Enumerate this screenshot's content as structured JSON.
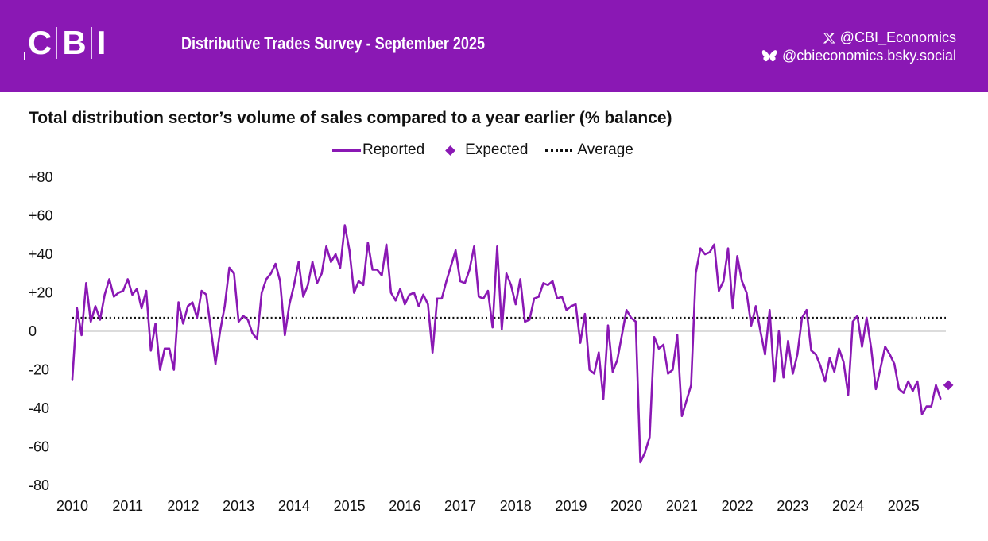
{
  "header": {
    "logo_letters": [
      "C",
      "B",
      "I"
    ],
    "title": "Distributive Trades Survey - September 2025",
    "social": [
      {
        "icon": "x-icon",
        "handle": "@CBI_Economics"
      },
      {
        "icon": "butterfly-icon",
        "handle": "@cbieconomics.bsky.social"
      }
    ]
  },
  "colors": {
    "brand": "#8a18b4",
    "average": "#111111",
    "zero_line": "#d0d0d0"
  },
  "chart_data": {
    "type": "line",
    "title": "Total distribution sector’s volume of sales compared to a year earlier (% balance)",
    "xlabel": "",
    "ylabel": "",
    "ylim": [
      -80,
      80
    ],
    "yticks": [
      80,
      60,
      40,
      20,
      0,
      -20,
      -40,
      -60,
      -80
    ],
    "ytick_labels": [
      "+80",
      "+60",
      "+40",
      "+20",
      "0",
      "-20",
      "-40",
      "-60",
      "-80"
    ],
    "xticks": [
      "2010",
      "2011",
      "2012",
      "2013",
      "2014",
      "2015",
      "2016",
      "2017",
      "2018",
      "2019",
      "2020",
      "2021",
      "2022",
      "2023",
      "2024",
      "2025"
    ],
    "x_start": "2010-01",
    "frequency": "monthly",
    "legend": {
      "placement": "top-center",
      "entries": [
        "Reported",
        "Expected",
        "Average"
      ]
    },
    "grid": false,
    "series": [
      {
        "name": "Reported",
        "style": "line",
        "values": [
          -25,
          12,
          -2,
          25,
          5,
          13,
          6,
          19,
          27,
          18,
          20,
          21,
          27,
          19,
          22,
          12,
          21,
          -10,
          4,
          -20,
          -9,
          -9,
          -20,
          15,
          4,
          13,
          15,
          7,
          21,
          19,
          1,
          -17,
          0,
          13,
          33,
          30,
          5,
          8,
          6,
          -1,
          -4,
          20,
          27,
          30,
          35,
          26,
          -2,
          14,
          24,
          36,
          18,
          24,
          36,
          25,
          30,
          44,
          36,
          40,
          33,
          55,
          42,
          20,
          26,
          24,
          46,
          32,
          32,
          29,
          45,
          20,
          16,
          22,
          14,
          19,
          20,
          13,
          19,
          14,
          -11,
          17,
          17,
          26,
          34,
          42,
          26,
          25,
          32,
          44,
          18,
          17,
          21,
          2,
          44,
          1,
          30,
          24,
          14,
          27,
          5,
          6,
          17,
          18,
          25,
          24,
          26,
          17,
          18,
          11,
          13,
          14,
          -6,
          9,
          -20,
          -22,
          -11,
          -35,
          3,
          -21,
          -15,
          -2,
          11,
          7,
          5,
          -68,
          -63,
          -55,
          -3,
          -9,
          -7,
          -22,
          -20,
          -2,
          -44,
          -36,
          -28,
          30,
          43,
          40,
          41,
          45,
          21,
          26,
          43,
          12,
          39,
          26,
          20,
          3,
          13,
          0,
          -12,
          11,
          -26,
          0,
          -24,
          -5,
          -22,
          -12,
          7,
          11,
          -10,
          -12,
          -18,
          -26,
          -14,
          -21,
          -9,
          -16,
          -33,
          5,
          8,
          -8,
          7,
          -9,
          -30,
          -19,
          -8,
          -12,
          -17,
          -30,
          -32,
          -26,
          -31,
          -26,
          -43,
          -39,
          -39,
          -28,
          -35
        ]
      },
      {
        "name": "Expected",
        "style": "marker",
        "date": "2025-10",
        "value": -28
      },
      {
        "name": "Average",
        "style": "dotted",
        "value": 7
      }
    ]
  }
}
